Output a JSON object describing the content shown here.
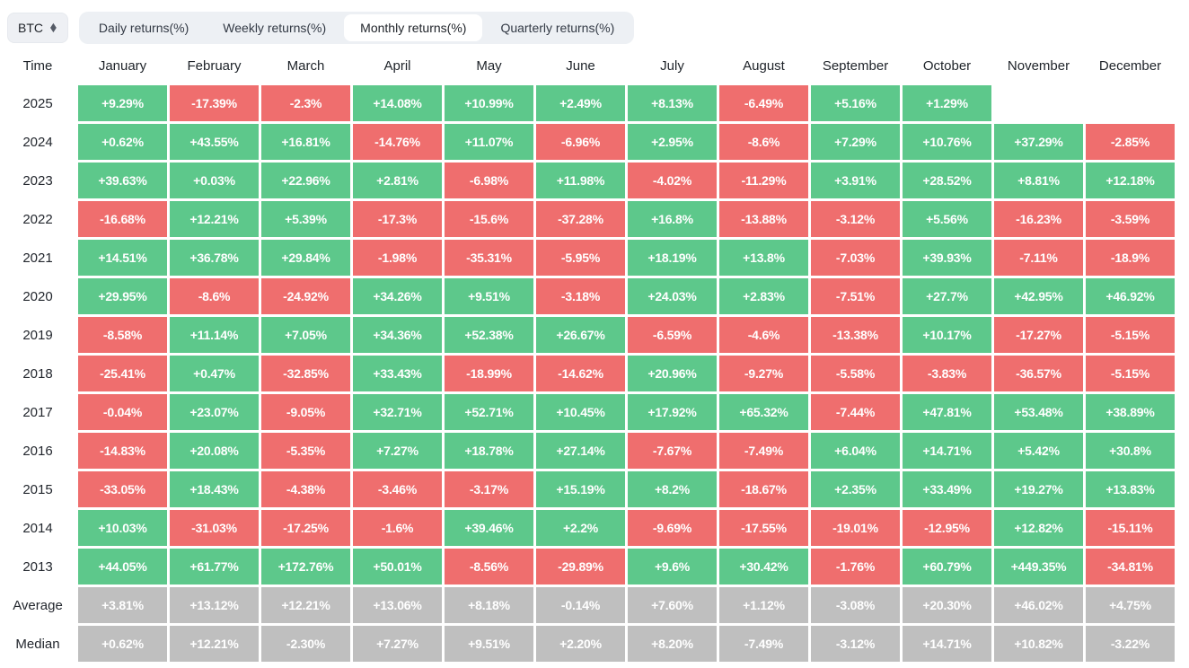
{
  "toolbar": {
    "asset": "BTC",
    "updown_icon": "updown-icon",
    "tabs": [
      {
        "label": "Daily returns(%)",
        "active": false
      },
      {
        "label": "Weekly returns(%)",
        "active": false
      },
      {
        "label": "Monthly returns(%)",
        "active": true
      },
      {
        "label": "Quarterly returns(%)",
        "active": false
      }
    ]
  },
  "colors": {
    "positive": "#5dc88b",
    "negative": "#ef6e6e",
    "summary": "#bfbfbf"
  },
  "table": {
    "time_header": "Time",
    "months": [
      "January",
      "February",
      "March",
      "April",
      "May",
      "June",
      "July",
      "August",
      "September",
      "October",
      "November",
      "December"
    ],
    "rows": [
      {
        "label": "2025",
        "type": "year",
        "values": [
          "+9.29%",
          "-17.39%",
          "-2.3%",
          "+14.08%",
          "+10.99%",
          "+2.49%",
          "+8.13%",
          "-6.49%",
          "+5.16%",
          "+1.29%",
          "",
          ""
        ]
      },
      {
        "label": "2024",
        "type": "year",
        "values": [
          "+0.62%",
          "+43.55%",
          "+16.81%",
          "-14.76%",
          "+11.07%",
          "-6.96%",
          "+2.95%",
          "-8.6%",
          "+7.29%",
          "+10.76%",
          "+37.29%",
          "-2.85%"
        ]
      },
      {
        "label": "2023",
        "type": "year",
        "values": [
          "+39.63%",
          "+0.03%",
          "+22.96%",
          "+2.81%",
          "-6.98%",
          "+11.98%",
          "-4.02%",
          "-11.29%",
          "+3.91%",
          "+28.52%",
          "+8.81%",
          "+12.18%"
        ]
      },
      {
        "label": "2022",
        "type": "year",
        "values": [
          "-16.68%",
          "+12.21%",
          "+5.39%",
          "-17.3%",
          "-15.6%",
          "-37.28%",
          "+16.8%",
          "-13.88%",
          "-3.12%",
          "+5.56%",
          "-16.23%",
          "-3.59%"
        ]
      },
      {
        "label": "2021",
        "type": "year",
        "values": [
          "+14.51%",
          "+36.78%",
          "+29.84%",
          "-1.98%",
          "-35.31%",
          "-5.95%",
          "+18.19%",
          "+13.8%",
          "-7.03%",
          "+39.93%",
          "-7.11%",
          "-18.9%"
        ]
      },
      {
        "label": "2020",
        "type": "year",
        "values": [
          "+29.95%",
          "-8.6%",
          "-24.92%",
          "+34.26%",
          "+9.51%",
          "-3.18%",
          "+24.03%",
          "+2.83%",
          "-7.51%",
          "+27.7%",
          "+42.95%",
          "+46.92%"
        ]
      },
      {
        "label": "2019",
        "type": "year",
        "values": [
          "-8.58%",
          "+11.14%",
          "+7.05%",
          "+34.36%",
          "+52.38%",
          "+26.67%",
          "-6.59%",
          "-4.6%",
          "-13.38%",
          "+10.17%",
          "-17.27%",
          "-5.15%"
        ]
      },
      {
        "label": "2018",
        "type": "year",
        "values": [
          "-25.41%",
          "+0.47%",
          "-32.85%",
          "+33.43%",
          "-18.99%",
          "-14.62%",
          "+20.96%",
          "-9.27%",
          "-5.58%",
          "-3.83%",
          "-36.57%",
          "-5.15%"
        ]
      },
      {
        "label": "2017",
        "type": "year",
        "values": [
          "-0.04%",
          "+23.07%",
          "-9.05%",
          "+32.71%",
          "+52.71%",
          "+10.45%",
          "+17.92%",
          "+65.32%",
          "-7.44%",
          "+47.81%",
          "+53.48%",
          "+38.89%"
        ]
      },
      {
        "label": "2016",
        "type": "year",
        "values": [
          "-14.83%",
          "+20.08%",
          "-5.35%",
          "+7.27%",
          "+18.78%",
          "+27.14%",
          "-7.67%",
          "-7.49%",
          "+6.04%",
          "+14.71%",
          "+5.42%",
          "+30.8%"
        ]
      },
      {
        "label": "2015",
        "type": "year",
        "values": [
          "-33.05%",
          "+18.43%",
          "-4.38%",
          "-3.46%",
          "-3.17%",
          "+15.19%",
          "+8.2%",
          "-18.67%",
          "+2.35%",
          "+33.49%",
          "+19.27%",
          "+13.83%"
        ]
      },
      {
        "label": "2014",
        "type": "year",
        "values": [
          "+10.03%",
          "-31.03%",
          "-17.25%",
          "-1.6%",
          "+39.46%",
          "+2.2%",
          "-9.69%",
          "-17.55%",
          "-19.01%",
          "-12.95%",
          "+12.82%",
          "-15.11%"
        ]
      },
      {
        "label": "2013",
        "type": "year",
        "values": [
          "+44.05%",
          "+61.77%",
          "+172.76%",
          "+50.01%",
          "-8.56%",
          "-29.89%",
          "+9.6%",
          "+30.42%",
          "-1.76%",
          "+60.79%",
          "+449.35%",
          "-34.81%"
        ]
      },
      {
        "label": "Average",
        "type": "summary",
        "values": [
          "+3.81%",
          "+13.12%",
          "+12.21%",
          "+13.06%",
          "+8.18%",
          "-0.14%",
          "+7.60%",
          "+1.12%",
          "-3.08%",
          "+20.30%",
          "+46.02%",
          "+4.75%"
        ]
      },
      {
        "label": "Median",
        "type": "summary",
        "values": [
          "+0.62%",
          "+12.21%",
          "-2.30%",
          "+7.27%",
          "+9.51%",
          "+2.20%",
          "+8.20%",
          "-7.49%",
          "-3.12%",
          "+14.71%",
          "+10.82%",
          "-3.22%"
        ]
      }
    ]
  }
}
